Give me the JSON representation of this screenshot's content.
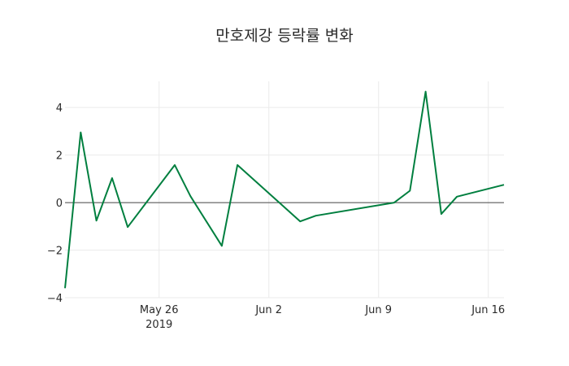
{
  "chart_data": {
    "type": "line",
    "title": "만호제강 등락률 변화",
    "xlabel": "",
    "ylabel": "",
    "ylim": [
      -4,
      5.1
    ],
    "xlim": [
      "2019-05-20",
      "2019-06-17"
    ],
    "grid": true,
    "line_color": "#007f3f",
    "x_ticks": [
      {
        "date": "2019-05-26",
        "label": "May 26",
        "sublabel": "2019"
      },
      {
        "date": "2019-06-02",
        "label": "Jun 2"
      },
      {
        "date": "2019-06-09",
        "label": "Jun 9"
      },
      {
        "date": "2019-06-16",
        "label": "Jun 16"
      }
    ],
    "y_ticks": [
      {
        "value": 4,
        "label": "4"
      },
      {
        "value": 2,
        "label": "2"
      },
      {
        "value": 0,
        "label": "0"
      },
      {
        "value": -2,
        "label": "−2"
      },
      {
        "value": -4,
        "label": "−4"
      }
    ],
    "series": [
      {
        "name": "등락률",
        "x": [
          "2019-05-20",
          "2019-05-21",
          "2019-05-22",
          "2019-05-23",
          "2019-05-24",
          "2019-05-27",
          "2019-05-28",
          "2019-05-30",
          "2019-05-31",
          "2019-06-04",
          "2019-06-05",
          "2019-06-10",
          "2019-06-11",
          "2019-06-12",
          "2019-06-13",
          "2019-06-14",
          "2019-06-17"
        ],
        "values": [
          -3.6,
          2.95,
          -0.76,
          1.03,
          -1.03,
          1.58,
          0.27,
          -1.82,
          1.58,
          -0.79,
          -0.55,
          0.0,
          0.5,
          4.67,
          -0.48,
          0.25,
          0.75
        ]
      }
    ]
  }
}
